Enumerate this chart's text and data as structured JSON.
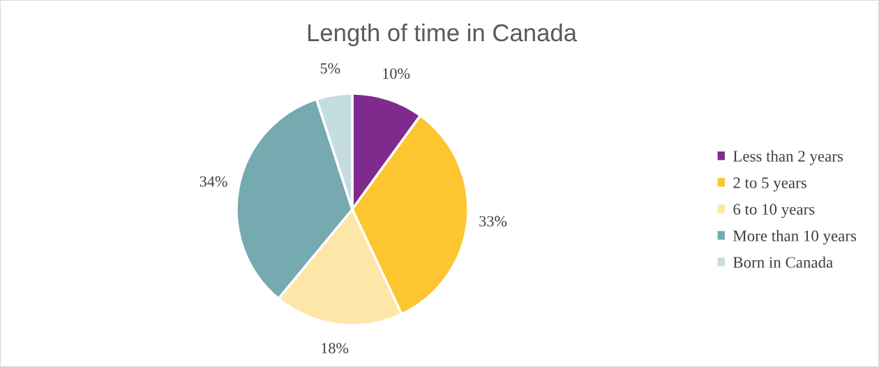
{
  "chart_data": {
    "type": "pie",
    "title": "Length of time in Canada",
    "categories": [
      "Less than 2 years",
      "2 to 5 years",
      "6 to 10 years",
      "More than 10 years",
      "Born in Canada"
    ],
    "values": [
      10,
      33,
      18,
      34,
      5
    ],
    "value_labels": [
      "10%",
      "33%",
      "18%",
      "34%",
      "5%"
    ],
    "colors": [
      "#7f2b8d",
      "#fdc52f",
      "#fde6a8",
      "#74aab0",
      "#c6dde0"
    ],
    "legend": "right"
  }
}
